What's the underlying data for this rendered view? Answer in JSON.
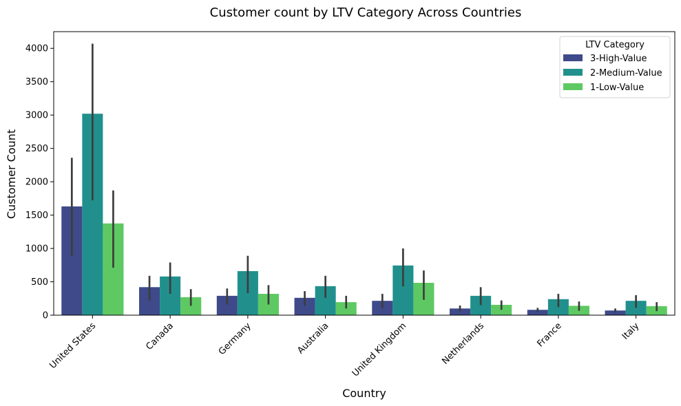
{
  "chart_data": {
    "type": "bar",
    "title": "Customer count by LTV Category Across Countries",
    "xlabel": "Country",
    "ylabel": "Customer Count",
    "ylim": [
      0,
      4250
    ],
    "yticks": [
      0,
      500,
      1000,
      1500,
      2000,
      2500,
      3000,
      3500,
      4000
    ],
    "grid": false,
    "legend": {
      "title": "LTV Category",
      "placement": "top-right"
    },
    "categories": [
      "United States",
      "Canada",
      "Germany",
      "Australia",
      "United Kingdom",
      "Netherlands",
      "France",
      "Italy"
    ],
    "series": [
      {
        "name": "3-High-Value",
        "color": "#3e4a89",
        "values": [
          1630,
          420,
          290,
          260,
          215,
          100,
          80,
          70
        ],
        "error_low": [
          890,
          220,
          160,
          140,
          105,
          60,
          50,
          40
        ],
        "error_high": [
          2360,
          590,
          400,
          360,
          320,
          145,
          110,
          100
        ]
      },
      {
        "name": "2-Medium-Value",
        "color": "#21908d",
        "values": [
          3020,
          580,
          660,
          435,
          745,
          290,
          240,
          215
        ],
        "error_low": [
          1720,
          320,
          330,
          260,
          430,
          150,
          120,
          110
        ],
        "error_high": [
          4070,
          790,
          890,
          590,
          1000,
          420,
          320,
          300
        ]
      },
      {
        "name": "1-Low-Value",
        "color": "#5ec962",
        "values": [
          1375,
          270,
          320,
          195,
          485,
          155,
          140,
          135
        ],
        "error_low": [
          710,
          140,
          160,
          100,
          230,
          80,
          65,
          60
        ],
        "error_high": [
          1870,
          390,
          450,
          290,
          670,
          220,
          205,
          195
        ]
      }
    ]
  }
}
